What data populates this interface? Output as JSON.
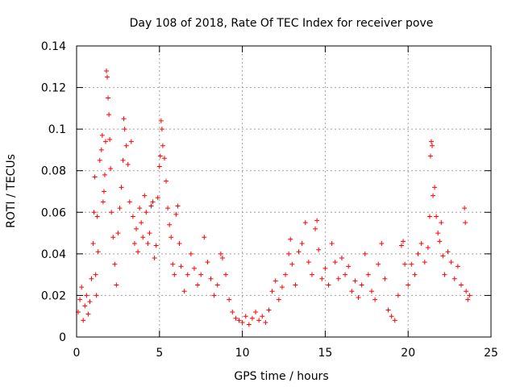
{
  "chart_data": {
    "type": "scatter",
    "title": "Day 108 of 2018, Rate Of TEC Index for receiver pove",
    "xlabel": "GPS time / hours",
    "ylabel": "ROTI / TECUs",
    "xlim": [
      0,
      25
    ],
    "ylim": [
      0,
      0.14
    ],
    "xticks": [
      0,
      5,
      10,
      15,
      20,
      25
    ],
    "yticks": [
      0,
      0.02,
      0.04,
      0.06,
      0.08,
      0.1,
      0.12,
      0.14
    ],
    "xtick_labels": [
      "0",
      "5",
      "10",
      "15",
      "20",
      "25"
    ],
    "ytick_labels": [
      "0",
      "0.02",
      "0.04",
      "0.06",
      "0.08",
      "0.1",
      "0.12",
      "0.14"
    ],
    "grid": true,
    "marker": "+",
    "color": "#ff0000",
    "series": [
      {
        "name": "ROTI",
        "points": [
          [
            0.1,
            0.012
          ],
          [
            0.2,
            0.018
          ],
          [
            0.3,
            0.024
          ],
          [
            0.4,
            0.008
          ],
          [
            0.5,
            0.015
          ],
          [
            0.6,
            0.02
          ],
          [
            0.7,
            0.011
          ],
          [
            0.8,
            0.017
          ],
          [
            0.9,
            0.028
          ],
          [
            1.0,
            0.045
          ],
          [
            1.05,
            0.06
          ],
          [
            1.1,
            0.077
          ],
          [
            1.15,
            0.03
          ],
          [
            1.2,
            0.02
          ],
          [
            1.25,
            0.058
          ],
          [
            1.3,
            0.041
          ],
          [
            1.4,
            0.085
          ],
          [
            1.5,
            0.09
          ],
          [
            1.55,
            0.097
          ],
          [
            1.6,
            0.065
          ],
          [
            1.65,
            0.07
          ],
          [
            1.7,
            0.078
          ],
          [
            1.75,
            0.094
          ],
          [
            1.8,
            0.128
          ],
          [
            1.85,
            0.125
          ],
          [
            1.9,
            0.115
          ],
          [
            1.95,
            0.107
          ],
          [
            2.0,
            0.095
          ],
          [
            2.05,
            0.081
          ],
          [
            2.1,
            0.06
          ],
          [
            2.2,
            0.048
          ],
          [
            2.3,
            0.035
          ],
          [
            2.4,
            0.025
          ],
          [
            2.5,
            0.05
          ],
          [
            2.6,
            0.062
          ],
          [
            2.7,
            0.072
          ],
          [
            2.8,
            0.085
          ],
          [
            2.85,
            0.105
          ],
          [
            2.9,
            0.1
          ],
          [
            3.0,
            0.092
          ],
          [
            3.1,
            0.083
          ],
          [
            3.2,
            0.065
          ],
          [
            3.3,
            0.094
          ],
          [
            3.4,
            0.058
          ],
          [
            3.5,
            0.045
          ],
          [
            3.6,
            0.052
          ],
          [
            3.7,
            0.041
          ],
          [
            3.8,
            0.062
          ],
          [
            3.9,
            0.055
          ],
          [
            4.0,
            0.048
          ],
          [
            4.1,
            0.068
          ],
          [
            4.2,
            0.06
          ],
          [
            4.3,
            0.045
          ],
          [
            4.4,
            0.05
          ],
          [
            4.5,
            0.063
          ],
          [
            4.6,
            0.065
          ],
          [
            4.7,
            0.038
          ],
          [
            4.8,
            0.044
          ],
          [
            4.9,
            0.067
          ],
          [
            5.0,
            0.082
          ],
          [
            5.05,
            0.087
          ],
          [
            5.1,
            0.104
          ],
          [
            5.15,
            0.1
          ],
          [
            5.2,
            0.092
          ],
          [
            5.3,
            0.086
          ],
          [
            5.4,
            0.075
          ],
          [
            5.5,
            0.062
          ],
          [
            5.6,
            0.054
          ],
          [
            5.7,
            0.048
          ],
          [
            5.8,
            0.035
          ],
          [
            5.9,
            0.03
          ],
          [
            6.0,
            0.059
          ],
          [
            6.1,
            0.063
          ],
          [
            6.2,
            0.045
          ],
          [
            6.3,
            0.034
          ],
          [
            6.5,
            0.022
          ],
          [
            6.7,
            0.03
          ],
          [
            6.9,
            0.04
          ],
          [
            7.1,
            0.033
          ],
          [
            7.3,
            0.025
          ],
          [
            7.5,
            0.03
          ],
          [
            7.7,
            0.048
          ],
          [
            7.9,
            0.036
          ],
          [
            8.1,
            0.028
          ],
          [
            8.3,
            0.02
          ],
          [
            8.5,
            0.025
          ],
          [
            8.7,
            0.04
          ],
          [
            8.8,
            0.038
          ],
          [
            9.0,
            0.03
          ],
          [
            9.2,
            0.018
          ],
          [
            9.4,
            0.012
          ],
          [
            9.6,
            0.009
          ],
          [
            9.8,
            0.008
          ],
          [
            10.0,
            0.007
          ],
          [
            10.2,
            0.01
          ],
          [
            10.4,
            0.006
          ],
          [
            10.6,
            0.009
          ],
          [
            10.8,
            0.012
          ],
          [
            11.0,
            0.008
          ],
          [
            11.2,
            0.01
          ],
          [
            11.4,
            0.007
          ],
          [
            11.6,
            0.013
          ],
          [
            11.8,
            0.022
          ],
          [
            12.0,
            0.027
          ],
          [
            12.2,
            0.018
          ],
          [
            12.4,
            0.024
          ],
          [
            12.6,
            0.03
          ],
          [
            12.8,
            0.04
          ],
          [
            12.9,
            0.047
          ],
          [
            13.0,
            0.035
          ],
          [
            13.2,
            0.025
          ],
          [
            13.4,
            0.041
          ],
          [
            13.6,
            0.045
          ],
          [
            13.8,
            0.055
          ],
          [
            14.0,
            0.036
          ],
          [
            14.2,
            0.03
          ],
          [
            14.4,
            0.052
          ],
          [
            14.5,
            0.056
          ],
          [
            14.6,
            0.042
          ],
          [
            14.8,
            0.028
          ],
          [
            15.0,
            0.033
          ],
          [
            15.2,
            0.025
          ],
          [
            15.4,
            0.045
          ],
          [
            15.6,
            0.036
          ],
          [
            15.8,
            0.028
          ],
          [
            16.0,
            0.038
          ],
          [
            16.2,
            0.03
          ],
          [
            16.4,
            0.034
          ],
          [
            16.6,
            0.022
          ],
          [
            16.8,
            0.027
          ],
          [
            17.0,
            0.019
          ],
          [
            17.2,
            0.025
          ],
          [
            17.4,
            0.04
          ],
          [
            17.6,
            0.03
          ],
          [
            17.8,
            0.022
          ],
          [
            18.0,
            0.018
          ],
          [
            18.2,
            0.035
          ],
          [
            18.4,
            0.045
          ],
          [
            18.6,
            0.028
          ],
          [
            18.8,
            0.013
          ],
          [
            19.0,
            0.01
          ],
          [
            19.2,
            0.008
          ],
          [
            19.4,
            0.02
          ],
          [
            19.6,
            0.044
          ],
          [
            19.7,
            0.046
          ],
          [
            19.8,
            0.035
          ],
          [
            20.0,
            0.025
          ],
          [
            20.2,
            0.035
          ],
          [
            20.4,
            0.03
          ],
          [
            20.6,
            0.04
          ],
          [
            20.8,
            0.045
          ],
          [
            21.0,
            0.036
          ],
          [
            21.2,
            0.043
          ],
          [
            21.3,
            0.058
          ],
          [
            21.35,
            0.087
          ],
          [
            21.4,
            0.094
          ],
          [
            21.45,
            0.092
          ],
          [
            21.5,
            0.068
          ],
          [
            21.6,
            0.072
          ],
          [
            21.7,
            0.058
          ],
          [
            21.8,
            0.05
          ],
          [
            21.9,
            0.046
          ],
          [
            22.0,
            0.055
          ],
          [
            22.1,
            0.039
          ],
          [
            22.2,
            0.03
          ],
          [
            22.4,
            0.041
          ],
          [
            22.6,
            0.036
          ],
          [
            22.8,
            0.028
          ],
          [
            23.0,
            0.034
          ],
          [
            23.2,
            0.025
          ],
          [
            23.4,
            0.062
          ],
          [
            23.45,
            0.055
          ],
          [
            23.5,
            0.022
          ],
          [
            23.6,
            0.018
          ],
          [
            23.7,
            0.02
          ]
        ]
      }
    ]
  }
}
